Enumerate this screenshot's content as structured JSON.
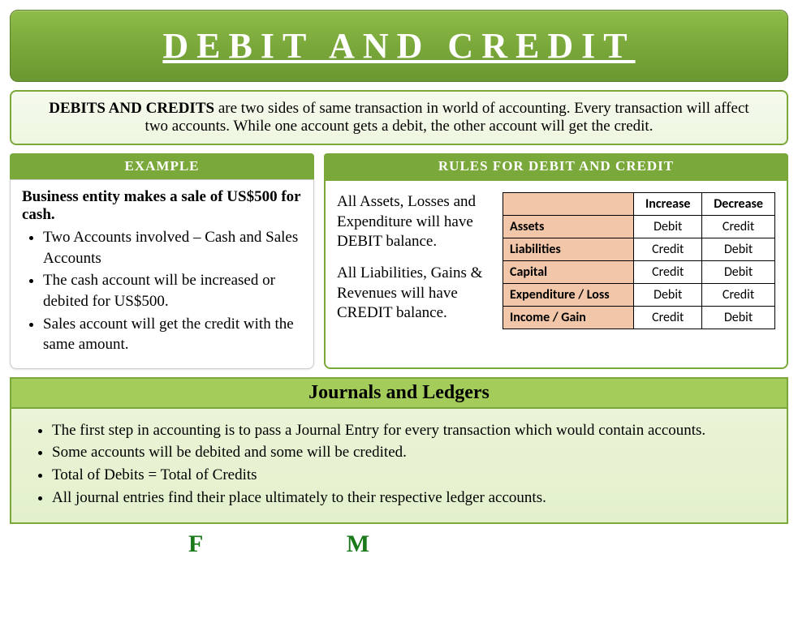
{
  "colors": {
    "banner_bg_top": "#8fbc49",
    "banner_bg_mid": "#7aa83a",
    "banner_bg_bot": "#6b9831",
    "banner_text": "#ffffff",
    "border_green": "#7aa83a",
    "light_green_bg": "#eef6e0",
    "header_green": "#7aa83a",
    "journals_header_bg": "#a3cc5a",
    "journals_body_bg": "#e3f0cc",
    "table_rowhead_bg": "#f2c6a8",
    "footer_letter_color": "#1a7a1a"
  },
  "title": "DEBIT AND CREDIT",
  "intro": {
    "bold": "DEBITS AND CREDITS",
    "rest": " are two sides of same transaction in world of accounting. Every transaction will affect two accounts. While one account gets a debit, the other account will get the credit."
  },
  "example": {
    "header": "EXAMPLE",
    "lead": "Business entity makes a sale of US$500 for cash.",
    "bullets": [
      "Two Accounts involved – Cash and Sales Accounts",
      "The cash account will be increased or debited for US$500.",
      "Sales account will get the credit with the same amount."
    ]
  },
  "rules": {
    "header": "RULES FOR DEBIT AND CREDIT",
    "para1": "All Assets, Losses and Expenditure will have DEBIT balance.",
    "para2": "All Liabilities, Gains & Revenues will have CREDIT balance.",
    "table": {
      "columns": [
        "",
        "Increase",
        "Decrease"
      ],
      "rows": [
        [
          "Assets",
          "Debit",
          "Credit"
        ],
        [
          "Liabilities",
          "Credit",
          "Debit"
        ],
        [
          "Capital",
          "Credit",
          "Debit"
        ],
        [
          "Expenditure / Loss",
          "Debit",
          "Credit"
        ],
        [
          "Income / Gain",
          "Credit",
          "Debit"
        ]
      ]
    }
  },
  "journals": {
    "header": "Journals and Ledgers",
    "bullets": [
      "The first step in accounting is to pass a Journal Entry for every transaction which would contain accounts.",
      "Some accounts will be debited and some will be credited.",
      "Total of Debits = Total of Credits",
      "All journal entries find their place ultimately to their respective ledger accounts."
    ]
  },
  "footer": {
    "left": "F",
    "right": "M"
  }
}
